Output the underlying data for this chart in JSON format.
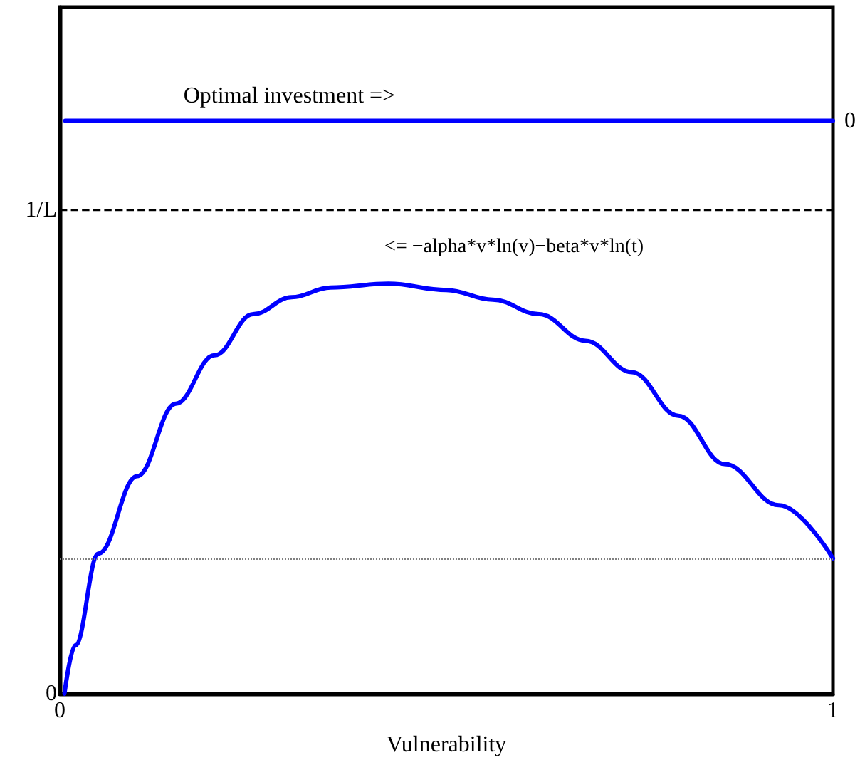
{
  "chart_data": {
    "type": "line",
    "xlabel": "Vulnerability",
    "xlim": [
      0,
      1
    ],
    "ylim": [
      0,
      1.42
    ],
    "xticks": [
      0,
      1
    ],
    "yticks": [
      0,
      {
        "value": 1,
        "label": "1/L"
      }
    ],
    "grid": false,
    "marker": "none",
    "line_style": "solid",
    "series": [
      {
        "color": "#0000ff",
        "x": [
          0.006,
          0.02,
          0.05,
          0.1,
          0.15,
          0.2,
          0.25,
          0.3,
          0.35,
          0.425,
          0.5,
          0.56,
          0.62,
          0.68,
          0.74,
          0.8,
          0.86,
          0.93,
          1.0
        ],
        "values": [
          0,
          0.1,
          0.29,
          0.45,
          0.6,
          0.7,
          0.785,
          0.82,
          0.84,
          0.848,
          0.835,
          0.815,
          0.785,
          0.73,
          0.665,
          0.575,
          0.475,
          0.39,
          0.28
        ]
      },
      {
        "color": "#0000ff",
        "x": [
          0.007,
          1
        ],
        "values": [
          1.185,
          1.185
        ]
      }
    ],
    "ref_lines": [
      {
        "axis": "y",
        "value": 1,
        "color": "#000000",
        "line_style": "dashed"
      },
      {
        "axis": "y",
        "value": 0.28,
        "color": "#808080",
        "line_style": "dotted"
      }
    ],
    "annotations": [
      "Optimal investment =>",
      {
        "text": "0",
        "x": 1,
        "y": 1.185
      },
      "<= −alpha*v*ln(v)−beta*v*ln(t)"
    ]
  }
}
